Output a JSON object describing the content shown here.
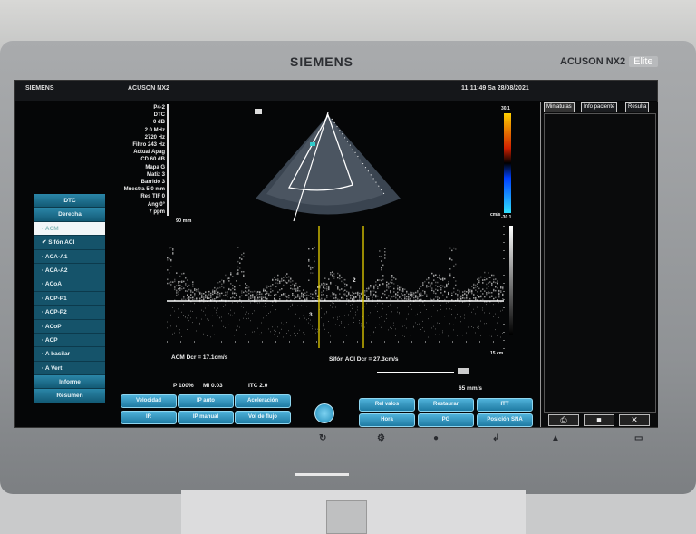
{
  "device": {
    "brand": "SIEMENS",
    "model": "ACUSON NX2",
    "edition": "Elite"
  },
  "topbar": {
    "logo": "SIEMENS",
    "system": "ACUSON NX2",
    "datetime": "11:11:49 Sa 28/08/2021"
  },
  "params": [
    "P4-2",
    "DTC",
    "0 dB",
    "2.0 MHz",
    "2720 Hz",
    "Filtro 243 Hz",
    "Actual Apag",
    "CD 60 dB",
    "Mapa G",
    "Matiz 3",
    "Barrido 3",
    "Muestra 5.0 mm",
    "Res TIF 0",
    "Ang 0°",
    "7 ppm"
  ],
  "depth_label": "90 mm",
  "vessel_list": {
    "header1": "DTC",
    "header2": "Derecha",
    "items": [
      {
        "label": "ACM",
        "state": "selected"
      },
      {
        "label": "Sifón ACI",
        "state": "checked"
      },
      {
        "label": "ACA-A1"
      },
      {
        "label": "ACA-A2"
      },
      {
        "label": "ACoA"
      },
      {
        "label": "ACP-P1"
      },
      {
        "label": "ACP-P2"
      },
      {
        "label": "ACoP"
      },
      {
        "label": "ACP"
      },
      {
        "label": "A basilar"
      },
      {
        "label": "A Vert"
      }
    ],
    "footer1": "Informe",
    "footer2": "Resumen"
  },
  "spectral": {
    "gate_labels": [
      "2",
      "3"
    ],
    "scale_unit": "cm/s",
    "depth": "15 cm",
    "sweep": "65 mm/s"
  },
  "measurements": {
    "m1": "ACM Dcr = 17.1cm/s",
    "m2": "Sifón ACI Dcr = 27.3cm/s"
  },
  "safety": {
    "power": "P 100%",
    "mi": "MI 0.03",
    "itc": "ITC 2.0"
  },
  "color_bar": {
    "top": "30.1",
    "bottom": "-30.1",
    "colors": [
      "#ffd000",
      "#d02000",
      "#0040ff",
      "#30e0ff"
    ]
  },
  "buttons": {
    "left": [
      "Velocidad",
      "IR",
      "IP auto",
      "IP manual",
      "Aceleración",
      "Vol de flujo"
    ],
    "right": [
      "Rel valos",
      "Hora",
      "Restaurar",
      "PG",
      "ITT",
      "Posición SNA"
    ]
  },
  "right_panel": {
    "tabs": [
      "Miniaturas",
      "Info paciente",
      "Resulta"
    ]
  },
  "accent": "#1f7ba3"
}
